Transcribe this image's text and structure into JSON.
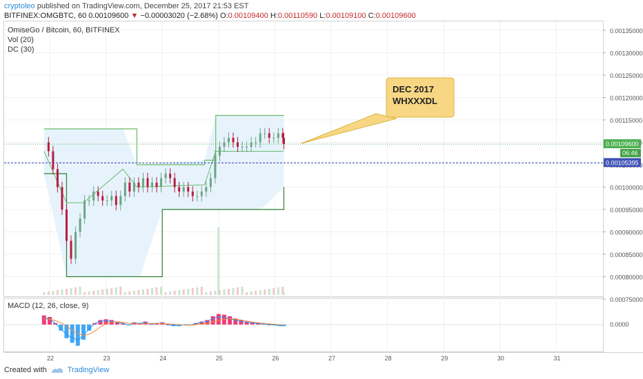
{
  "header": {
    "author": "cryptoleo",
    "published_text": "published on TradingView.com, December 25, 2017 21:53 EST",
    "symbol_line": "BITFINEX:OMGBTC, 60",
    "last_price": "0.00109600",
    "change_arrow": "▼",
    "change": "−0.00003020 (−2.68%)",
    "o_label": "O:",
    "o_value": "0.00109400",
    "h_label": "H:",
    "h_value": "0.00110590",
    "l_label": "L:",
    "l_value": "0.00109100",
    "c_label": "C:",
    "c_value": "0.00109600"
  },
  "legend": {
    "title": "OmiseGo / Bitcoin, 60, BITFINEX",
    "vol": "Vol (20)",
    "dc": "DC (30)",
    "macd": "MACD (12, 26, close, 9)"
  },
  "callout": {
    "line1": "DEC 2017",
    "line2": "WHXXXDL"
  },
  "price_badges": {
    "last": "0.00109600",
    "countdown": "06:46",
    "hline": "0.00105395"
  },
  "footer": {
    "created_with": "Created with",
    "brand": "TradingView"
  },
  "colors": {
    "up": "#6ca583",
    "down": "#b71c3f",
    "donchian": "#2e7d32",
    "donchian_fill": "#e3f2fd",
    "basis": "#66bb6a",
    "hline": "#3f51b5",
    "last_price": "#4caf50",
    "macd_line": "#2196f3",
    "signal_line": "#ef8c3a",
    "hist_pos": "#e91e63"
  },
  "chart_data": {
    "type": "line",
    "symbol": "OMGBTC",
    "ylim": [
      0.0007,
      0.00138
    ],
    "y_ticks": [
      "0.00135000",
      "0.00130000",
      "0.00125000",
      "0.00120000",
      "0.00115000",
      "0.00110000",
      "0.00105000",
      "0.00100000",
      "0.00095000",
      "0.00090000",
      "0.00085000",
      "0.00080000",
      "0.00075000"
    ],
    "x_ticks": [
      "22",
      "23",
      "24",
      "25",
      "26",
      "27",
      "28",
      "29",
      "30",
      "31"
    ],
    "close": [
      [
        21.9,
        0.0011
      ],
      [
        21.98,
        0.00108
      ],
      [
        22.06,
        0.00104
      ],
      [
        22.14,
        0.001
      ],
      [
        22.22,
        0.00095
      ],
      [
        22.3,
        0.00088
      ],
      [
        22.38,
        0.00084
      ],
      [
        22.46,
        0.0009
      ],
      [
        22.54,
        0.00093
      ],
      [
        22.62,
        0.00097
      ],
      [
        22.7,
        0.00097
      ],
      [
        22.78,
        0.00099
      ],
      [
        22.86,
        0.00098
      ],
      [
        22.94,
        0.00097
      ],
      [
        23.02,
        0.00097
      ],
      [
        23.1,
        0.00098
      ],
      [
        23.18,
        0.00096
      ],
      [
        23.26,
        0.00098
      ],
      [
        23.34,
        0.00101
      ],
      [
        23.42,
        0.00099
      ],
      [
        23.5,
        0.00101
      ],
      [
        23.58,
        0.001
      ],
      [
        23.66,
        0.00102
      ],
      [
        23.74,
        0.001
      ],
      [
        23.82,
        0.00101
      ],
      [
        23.9,
        0.001
      ],
      [
        23.98,
        0.00102
      ],
      [
        24.06,
        0.00103
      ],
      [
        24.14,
        0.00102
      ],
      [
        24.22,
        0.001
      ],
      [
        24.3,
        0.00099
      ],
      [
        24.38,
        0.001
      ],
      [
        24.46,
        0.00099
      ],
      [
        24.54,
        0.00098
      ],
      [
        24.62,
        0.00098
      ],
      [
        24.7,
        0.00099
      ],
      [
        24.78,
        0.001
      ],
      [
        24.86,
        0.00102
      ],
      [
        24.94,
        0.00107
      ],
      [
        25.02,
        0.00109
      ],
      [
        25.1,
        0.0011
      ],
      [
        25.18,
        0.00111
      ],
      [
        25.26,
        0.0011
      ],
      [
        25.34,
        0.00109
      ],
      [
        25.42,
        0.00109
      ],
      [
        25.5,
        0.00109
      ],
      [
        25.58,
        0.0011
      ],
      [
        25.66,
        0.0011
      ],
      [
        25.74,
        0.00112
      ],
      [
        25.82,
        0.00112
      ],
      [
        25.9,
        0.00111
      ],
      [
        25.98,
        0.00111
      ],
      [
        26.06,
        0.00112
      ],
      [
        26.14,
        0.00111
      ],
      [
        26.16,
        0.001096
      ]
    ],
    "donchian_upper": [
      [
        21.9,
        0.00113
      ],
      [
        22.3,
        0.00113
      ],
      [
        22.6,
        0.00113
      ],
      [
        23.3,
        0.00113
      ],
      [
        23.55,
        0.00105
      ],
      [
        24.75,
        0.00106
      ],
      [
        24.95,
        0.00116
      ],
      [
        26.16,
        0.00116
      ]
    ],
    "donchian_lower": [
      [
        21.9,
        0.00103
      ],
      [
        22.3,
        0.0008
      ],
      [
        23.6,
        0.0008
      ],
      [
        24.0,
        0.00095
      ],
      [
        24.75,
        0.00095
      ],
      [
        25.75,
        0.00095
      ],
      [
        26.16,
        0.001
      ]
    ],
    "horizontal_line": 0.00105395,
    "last_price": 0.001096,
    "macd": {
      "zero": 0.0,
      "hist": [
        [
          21.9,
          0.6
        ],
        [
          22.0,
          0.5
        ],
        [
          22.1,
          0.1
        ],
        [
          22.2,
          -0.4
        ],
        [
          22.3,
          -0.9
        ],
        [
          22.4,
          -1.2
        ],
        [
          22.5,
          -1.4
        ],
        [
          22.6,
          -1.0
        ],
        [
          22.7,
          -0.4
        ],
        [
          22.8,
          0.1
        ],
        [
          22.9,
          0.3
        ],
        [
          23.0,
          0.35
        ],
        [
          23.1,
          0.3
        ],
        [
          23.2,
          0.2
        ],
        [
          23.3,
          0.1
        ],
        [
          23.4,
          -0.05
        ],
        [
          23.5,
          0.15
        ],
        [
          23.6,
          0.1
        ],
        [
          23.7,
          0.2
        ],
        [
          23.8,
          0.05
        ],
        [
          23.9,
          0.1
        ],
        [
          24.0,
          0.15
        ],
        [
          24.1,
          0.0
        ],
        [
          24.2,
          -0.1
        ],
        [
          24.3,
          -0.1
        ],
        [
          24.4,
          0.0
        ],
        [
          24.5,
          -0.05
        ],
        [
          24.6,
          0.1
        ],
        [
          24.7,
          0.2
        ],
        [
          24.8,
          0.3
        ],
        [
          24.9,
          0.55
        ],
        [
          25.0,
          0.7
        ],
        [
          25.1,
          0.65
        ],
        [
          25.2,
          0.55
        ],
        [
          25.3,
          0.4
        ],
        [
          25.4,
          0.3
        ],
        [
          25.5,
          0.2
        ],
        [
          25.6,
          0.15
        ],
        [
          25.7,
          0.1
        ],
        [
          25.8,
          0.05
        ],
        [
          25.9,
          0.0
        ],
        [
          26.0,
          -0.05
        ],
        [
          26.1,
          -0.1
        ],
        [
          26.16,
          -0.1
        ]
      ]
    },
    "volume_spike_x": 25.0
  }
}
